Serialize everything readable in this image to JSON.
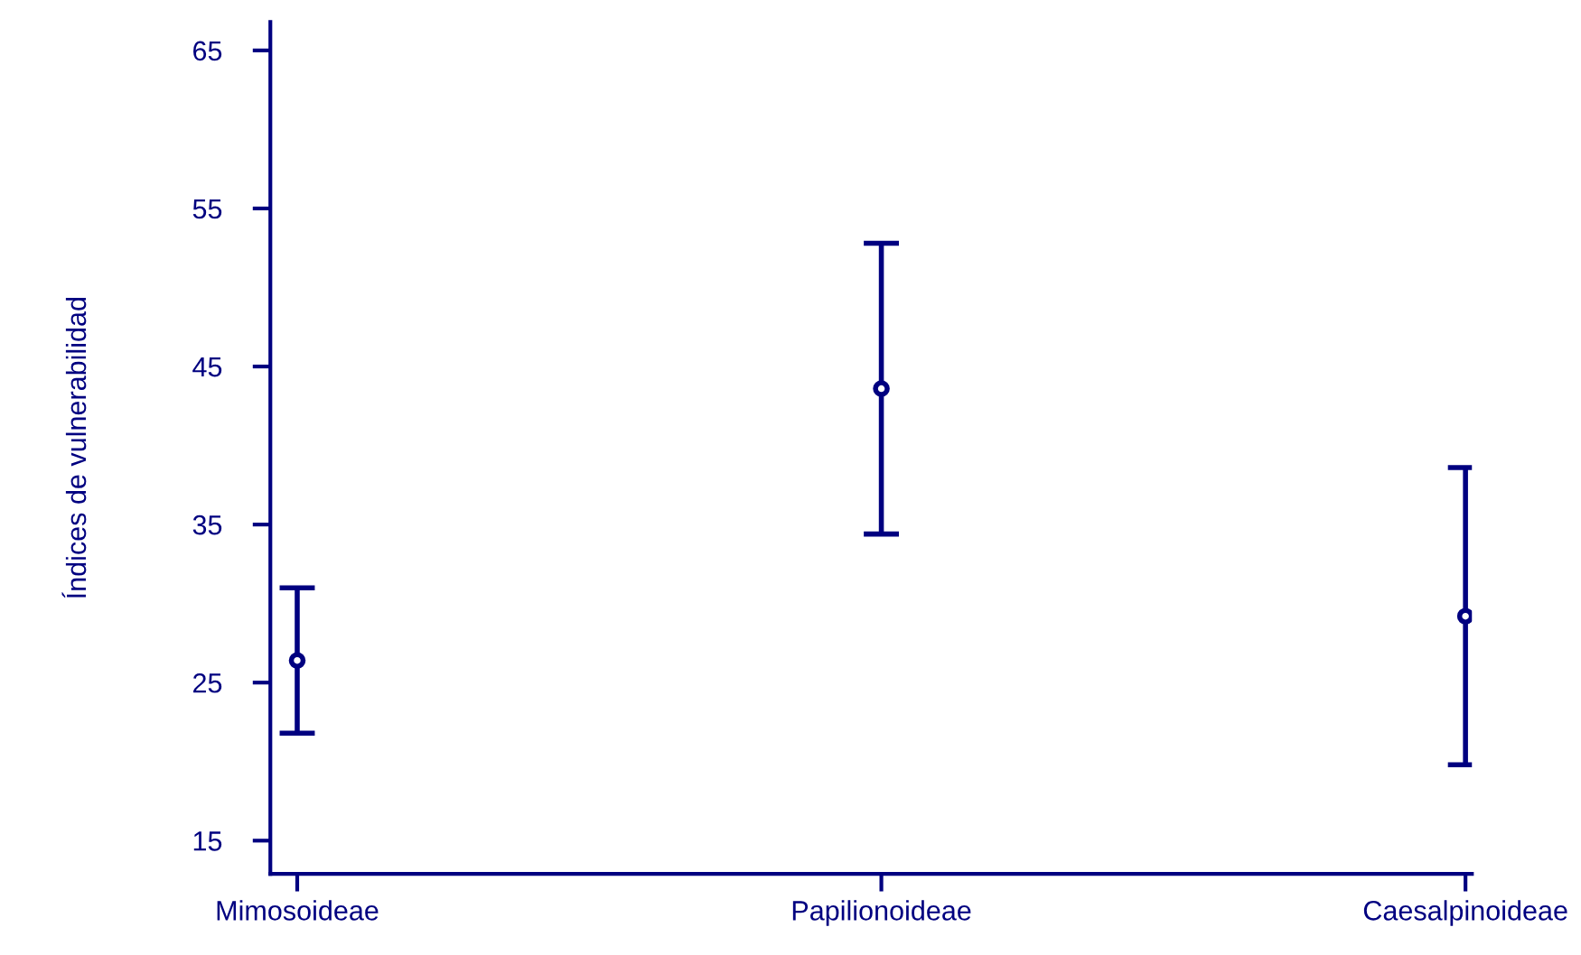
{
  "chart_data": {
    "type": "scatter",
    "ylabel": "Índices de vulnerabilidad",
    "categories": [
      "Mimosoideae",
      "Papilionoideae",
      "Caesalpinoideae"
    ],
    "values": [
      26.4,
      43.6,
      29.2
    ],
    "errors": [
      4.6,
      9.2,
      9.4
    ],
    "color": "#000080",
    "marker": "circle",
    "ylim": [
      12.9,
      66.8
    ],
    "yticks": [
      15,
      25,
      35,
      45,
      55,
      65
    ],
    "grid": false
  }
}
